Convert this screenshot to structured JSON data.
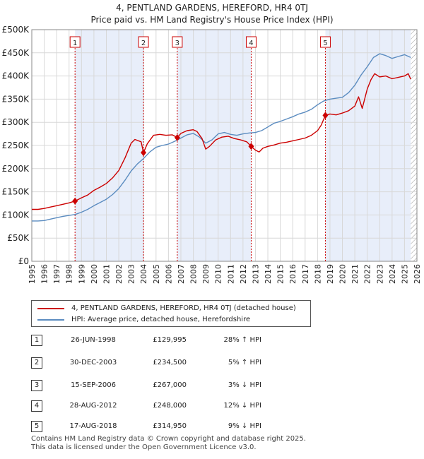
{
  "title_line1": "4, PENTLAND GARDENS, HEREFORD, HR4 0TJ",
  "title_line2": "Price paid vs. HM Land Registry's House Price Index (HPI)",
  "chart_data": {
    "type": "line",
    "title": "Price paid vs. HM Land Registry's House Price Index (HPI)",
    "xlim": [
      1995,
      2026
    ],
    "ylim": [
      0,
      500000
    ],
    "x_ticks": [
      1995,
      1996,
      1997,
      1998,
      1999,
      2000,
      2001,
      2002,
      2003,
      2004,
      2005,
      2006,
      2007,
      2008,
      2009,
      2010,
      2011,
      2012,
      2013,
      2014,
      2015,
      2016,
      2017,
      2018,
      2019,
      2020,
      2021,
      2022,
      2023,
      2024,
      2025,
      2026
    ],
    "y_ticks": [
      {
        "value": 0,
        "label": "£0"
      },
      {
        "value": 50000,
        "label": "£50K"
      },
      {
        "value": 100000,
        "label": "£100K"
      },
      {
        "value": 150000,
        "label": "£150K"
      },
      {
        "value": 200000,
        "label": "£200K"
      },
      {
        "value": 250000,
        "label": "£250K"
      },
      {
        "value": 300000,
        "label": "£300K"
      },
      {
        "value": 350000,
        "label": "£350K"
      },
      {
        "value": 400000,
        "label": "£400K"
      },
      {
        "value": 450000,
        "label": "£450K"
      },
      {
        "value": 500000,
        "label": "£500K"
      }
    ],
    "series": [
      {
        "name": "4, PENTLAND GARDENS, HEREFORD, HR4 0TJ (detached house)",
        "color": "#cc0000",
        "points": [
          [
            1995.0,
            112000
          ],
          [
            1995.5,
            112000
          ],
          [
            1996.0,
            114000
          ],
          [
            1996.5,
            117000
          ],
          [
            1997.0,
            120000
          ],
          [
            1997.5,
            123000
          ],
          [
            1998.0,
            126000
          ],
          [
            1998.48,
            129995
          ],
          [
            1999.0,
            137000
          ],
          [
            1999.5,
            143000
          ],
          [
            2000.0,
            153000
          ],
          [
            2000.5,
            160000
          ],
          [
            2001.0,
            168000
          ],
          [
            2001.5,
            180000
          ],
          [
            2002.0,
            196000
          ],
          [
            2002.5,
            223000
          ],
          [
            2003.0,
            255000
          ],
          [
            2003.3,
            263000
          ],
          [
            2003.8,
            258000
          ],
          [
            2003.99,
            234500
          ],
          [
            2004.3,
            254000
          ],
          [
            2004.8,
            272000
          ],
          [
            2005.3,
            274000
          ],
          [
            2005.8,
            272000
          ],
          [
            2006.3,
            273000
          ],
          [
            2006.71,
            267000
          ],
          [
            2007.0,
            276000
          ],
          [
            2007.5,
            282000
          ],
          [
            2008.0,
            284000
          ],
          [
            2008.3,
            280000
          ],
          [
            2008.7,
            265000
          ],
          [
            2009.0,
            242000
          ],
          [
            2009.3,
            248000
          ],
          [
            2009.8,
            262000
          ],
          [
            2010.3,
            268000
          ],
          [
            2010.8,
            270000
          ],
          [
            2011.3,
            265000
          ],
          [
            2011.8,
            262000
          ],
          [
            2012.3,
            258000
          ],
          [
            2012.66,
            248000
          ],
          [
            2013.0,
            240000
          ],
          [
            2013.3,
            236000
          ],
          [
            2013.6,
            244000
          ],
          [
            2014.0,
            248000
          ],
          [
            2014.5,
            251000
          ],
          [
            2015.0,
            255000
          ],
          [
            2015.5,
            257000
          ],
          [
            2016.0,
            260000
          ],
          [
            2016.5,
            263000
          ],
          [
            2017.0,
            266000
          ],
          [
            2017.5,
            272000
          ],
          [
            2018.0,
            282000
          ],
          [
            2018.3,
            294000
          ],
          [
            2018.63,
            314950
          ],
          [
            2019.0,
            318000
          ],
          [
            2019.5,
            316000
          ],
          [
            2020.0,
            320000
          ],
          [
            2020.5,
            325000
          ],
          [
            2021.0,
            335000
          ],
          [
            2021.3,
            355000
          ],
          [
            2021.6,
            330000
          ],
          [
            2022.0,
            372000
          ],
          [
            2022.3,
            392000
          ],
          [
            2022.6,
            405000
          ],
          [
            2023.0,
            398000
          ],
          [
            2023.5,
            400000
          ],
          [
            2024.0,
            394000
          ],
          [
            2024.5,
            397000
          ],
          [
            2025.0,
            400000
          ],
          [
            2025.3,
            405000
          ],
          [
            2025.5,
            393000
          ]
        ]
      },
      {
        "name": "HPI: Average price, detached house, Herefordshire",
        "color": "#5b8cc0",
        "points": [
          [
            1995.0,
            87000
          ],
          [
            1995.5,
            87000
          ],
          [
            1996.0,
            88000
          ],
          [
            1996.5,
            91000
          ],
          [
            1997.0,
            94000
          ],
          [
            1997.5,
            97000
          ],
          [
            1998.0,
            99000
          ],
          [
            1998.5,
            101000
          ],
          [
            1999.0,
            106000
          ],
          [
            1999.5,
            112000
          ],
          [
            2000.0,
            120000
          ],
          [
            2000.5,
            127000
          ],
          [
            2001.0,
            134000
          ],
          [
            2001.5,
            144000
          ],
          [
            2002.0,
            157000
          ],
          [
            2002.5,
            175000
          ],
          [
            2003.0,
            195000
          ],
          [
            2003.5,
            210000
          ],
          [
            2004.0,
            222000
          ],
          [
            2004.5,
            236000
          ],
          [
            2005.0,
            246000
          ],
          [
            2005.5,
            250000
          ],
          [
            2006.0,
            253000
          ],
          [
            2006.5,
            259000
          ],
          [
            2007.0,
            266000
          ],
          [
            2007.5,
            273000
          ],
          [
            2008.0,
            276000
          ],
          [
            2008.5,
            268000
          ],
          [
            2009.0,
            255000
          ],
          [
            2009.5,
            262000
          ],
          [
            2010.0,
            275000
          ],
          [
            2010.5,
            278000
          ],
          [
            2011.0,
            274000
          ],
          [
            2011.5,
            272000
          ],
          [
            2012.0,
            275000
          ],
          [
            2012.5,
            277000
          ],
          [
            2013.0,
            278000
          ],
          [
            2013.5,
            282000
          ],
          [
            2014.0,
            290000
          ],
          [
            2014.5,
            298000
          ],
          [
            2015.0,
            302000
          ],
          [
            2015.5,
            307000
          ],
          [
            2016.0,
            312000
          ],
          [
            2016.5,
            318000
          ],
          [
            2017.0,
            322000
          ],
          [
            2017.5,
            328000
          ],
          [
            2018.0,
            338000
          ],
          [
            2018.5,
            346000
          ],
          [
            2019.0,
            350000
          ],
          [
            2019.5,
            352000
          ],
          [
            2020.0,
            354000
          ],
          [
            2020.5,
            364000
          ],
          [
            2021.0,
            380000
          ],
          [
            2021.5,
            402000
          ],
          [
            2022.0,
            420000
          ],
          [
            2022.5,
            440000
          ],
          [
            2023.0,
            448000
          ],
          [
            2023.5,
            444000
          ],
          [
            2024.0,
            438000
          ],
          [
            2024.5,
            442000
          ],
          [
            2025.0,
            446000
          ],
          [
            2025.5,
            440000
          ]
        ]
      }
    ],
    "sales": [
      {
        "num": "1",
        "year": 1998.48,
        "price": 129995
      },
      {
        "num": "2",
        "year": 2003.99,
        "price": 234500
      },
      {
        "num": "3",
        "year": 2006.71,
        "price": 267000
      },
      {
        "num": "4",
        "year": 2012.66,
        "price": 248000
      },
      {
        "num": "5",
        "year": 2018.63,
        "price": 314950
      }
    ],
    "shaded_ranges": [
      [
        1998.48,
        2003.99
      ],
      [
        2006.71,
        2012.66
      ],
      [
        2018.63,
        2025.5
      ]
    ],
    "future_start": 2025.5,
    "legend_position": "bottom"
  },
  "legend": {
    "property_label": "4, PENTLAND GARDENS, HEREFORD, HR4 0TJ (detached house)",
    "hpi_label": "HPI: Average price, detached house, Herefordshire",
    "property_color": "#cc0000",
    "hpi_color": "#5b8cc0"
  },
  "sales_table": [
    {
      "num": "1",
      "date": "26-JUN-1998",
      "price": "£129,995",
      "hpi": "28% ↑ HPI"
    },
    {
      "num": "2",
      "date": "30-DEC-2003",
      "price": "£234,500",
      "hpi": "5% ↑ HPI"
    },
    {
      "num": "3",
      "date": "15-SEP-2006",
      "price": "£267,000",
      "hpi": "3% ↓ HPI"
    },
    {
      "num": "4",
      "date": "28-AUG-2012",
      "price": "£248,000",
      "hpi": "12% ↓ HPI"
    },
    {
      "num": "5",
      "date": "17-AUG-2018",
      "price": "£314,950",
      "hpi": "9% ↓ HPI"
    }
  ],
  "footer_line1": "Contains HM Land Registry data © Crown copyright and database right 2025.",
  "footer_line2": "This data is licensed under the Open Government Licence v3.0."
}
